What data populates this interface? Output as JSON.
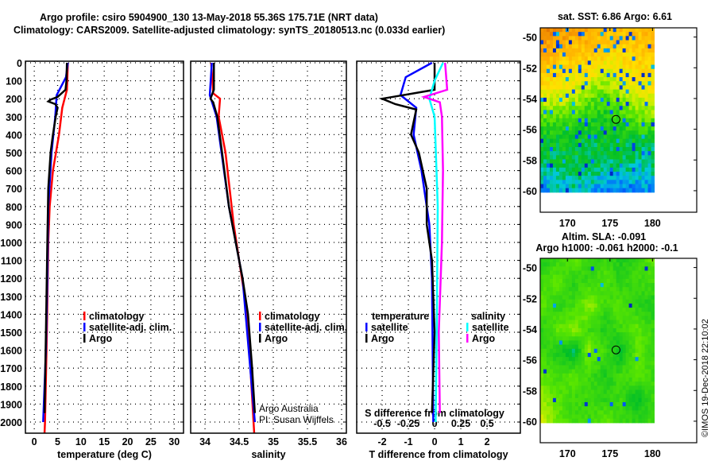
{
  "title_line1": "Argo profile: csiro 5904900_130 13-May-2018 55.36S 175.71E (NRT data)",
  "title_line2": "Climatology: CARS2009. Satellite-adjusted climatology: synTS_20180513.nc (0.033d earlier)",
  "credit": "Argo Australia",
  "pi": "PI: Susan Wijffels",
  "stamp": "©IMOS 19-Dec-2018 22:10:02",
  "colors": {
    "climatology": "#ff0000",
    "satellite": "#0000ff",
    "argo": "#000000",
    "sal_sat": "#00ffff",
    "sal_argo": "#ff00ff"
  },
  "chart_data": [
    {
      "type": "line",
      "id": "temperature",
      "xlabel": "temperature (deg C)",
      "ylabel": "",
      "xlim": [
        -1.9,
        32
      ],
      "ylim": [
        2060,
        0
      ],
      "xticks": [
        "0",
        "5",
        "10",
        "15",
        "20",
        "25",
        "30"
      ],
      "xtick_values": [
        0,
        5,
        10,
        15,
        20,
        25,
        30
      ],
      "yticks": [
        "0",
        "100",
        "200",
        "300",
        "400",
        "500",
        "600",
        "700",
        "800",
        "900",
        "1000",
        "1100",
        "1200",
        "1300",
        "1400",
        "1500",
        "1600",
        "1700",
        "1800",
        "1900",
        "2000"
      ],
      "legend": [
        "climatology",
        "satellite-adj. clim.",
        "Argo"
      ],
      "series": [
        {
          "name": "climatology",
          "color": "#ff0000",
          "depth": [
            0,
            150,
            250,
            400,
            600,
            800,
            1000,
            1500,
            2000,
            2060
          ],
          "values": [
            7.2,
            7.0,
            6.0,
            5.3,
            4.0,
            3.3,
            3.0,
            2.7,
            2.3,
            2.2
          ]
        },
        {
          "name": "satellite-adj. clim.",
          "color": "#0000ff",
          "depth": [
            0,
            80,
            180,
            300,
            500,
            800,
            1200,
            1600,
            2000
          ],
          "values": [
            7.2,
            6.8,
            4.8,
            4.5,
            3.7,
            3.0,
            2.8,
            2.5,
            1.9
          ]
        },
        {
          "name": "Argo",
          "color": "#000000",
          "depth": [
            0,
            100,
            150,
            190,
            205,
            215,
            230,
            250,
            300,
            400,
            500,
            700,
            1000,
            1500,
            1950
          ],
          "values": [
            7.0,
            6.9,
            6.7,
            5.0,
            3.5,
            3.0,
            4.5,
            5.0,
            4.6,
            4.0,
            3.5,
            3.0,
            2.8,
            2.5,
            2.2
          ]
        }
      ]
    },
    {
      "type": "line",
      "id": "salinity",
      "xlabel": "salinity",
      "xlim": [
        33.79,
        36.07
      ],
      "ylim": [
        2060,
        0
      ],
      "xticks": [
        "34",
        "34.5",
        "35",
        "35.5",
        "36"
      ],
      "xtick_values": [
        34,
        34.5,
        35,
        35.5,
        36
      ],
      "legend": [
        "climatology",
        "satellite-adj. clim.",
        "Argo"
      ],
      "series": [
        {
          "name": "climatology",
          "color": "#ff0000",
          "depth": [
            0,
            170,
            200,
            300,
            500,
            900,
            1100,
            1400,
            2060
          ],
          "values": [
            34.09,
            34.12,
            34.22,
            34.2,
            34.3,
            34.42,
            34.5,
            34.62,
            34.72
          ]
        },
        {
          "name": "satellite-adj. clim.",
          "color": "#0000ff",
          "depth": [
            0,
            180,
            300,
            800,
            1200,
            2000
          ],
          "values": [
            34.1,
            34.07,
            34.17,
            34.35,
            34.55,
            34.73
          ]
        },
        {
          "name": "Argo",
          "color": "#000000",
          "depth": [
            0,
            150,
            200,
            220,
            300,
            500,
            800,
            1000,
            1200,
            1400,
            1700,
            1950
          ],
          "values": [
            34.13,
            34.13,
            34.08,
            34.12,
            34.18,
            34.25,
            34.35,
            34.45,
            34.55,
            34.63,
            34.69,
            34.73
          ]
        }
      ]
    },
    {
      "type": "line",
      "id": "difference",
      "xlabel": "T difference from climatology",
      "x2label": "S difference from climatology",
      "xlim": [
        -2.97,
        3.27
      ],
      "ylim": [
        2060,
        0
      ],
      "xticks": [
        "-2",
        "-1",
        "0",
        "1",
        "2"
      ],
      "xtick_values": [
        -2,
        -1,
        0,
        1,
        2
      ],
      "x2ticks": [
        "-0.5",
        "-0.25",
        "0",
        "0.25",
        "0.5"
      ],
      "x2tick_values": [
        -0.5,
        -0.25,
        0,
        0.25,
        0.5
      ],
      "legend_t": {
        "title": "temperature",
        "items": [
          "satellite",
          "Argo"
        ]
      },
      "legend_s": {
        "title": "salinity",
        "items": [
          "satellite",
          "Argo"
        ]
      },
      "series": [
        {
          "name": "T satellite",
          "axis": "T",
          "color": "#0000ff",
          "depth": [
            0,
            80,
            180,
            250,
            400,
            600,
            900,
            1200,
            2000
          ],
          "values": [
            -0.1,
            -1.1,
            -1.3,
            -0.7,
            -0.8,
            -0.5,
            -0.2,
            -0.1,
            -0.05
          ]
        },
        {
          "name": "T Argo",
          "axis": "T",
          "color": "#000000",
          "depth": [
            0,
            150,
            180,
            200,
            230,
            260,
            400,
            500,
            700,
            900,
            1100,
            1500,
            1950
          ],
          "values": [
            0,
            0,
            -1.2,
            -2.0,
            -1.5,
            -0.7,
            -0.9,
            -0.6,
            -0.3,
            -0.3,
            -0.1,
            0,
            -0.1
          ]
        },
        {
          "name": "S satellite",
          "axis": "S",
          "color": "#00ffff",
          "depth": [
            0,
            100,
            200,
            300,
            800,
            1500,
            2000
          ],
          "values": [
            0.08,
            0.0,
            -0.05,
            0.0,
            0.03,
            0.02,
            0.01
          ]
        },
        {
          "name": "S Argo",
          "axis": "S",
          "color": "#ff00ff",
          "depth": [
            0,
            150,
            190,
            220,
            300,
            600,
            1000,
            1500,
            1950
          ],
          "values": [
            0.1,
            0.12,
            -0.1,
            0.05,
            0.07,
            0.08,
            0.07,
            0.04,
            0.05
          ]
        }
      ]
    },
    {
      "type": "heatmap",
      "id": "sst-map",
      "title": "sat. SST: 6.86 Argo: 6.61",
      "xticks": [
        "170",
        "175",
        "180"
      ],
      "xtick_values": [
        170,
        175,
        180
      ],
      "yticks": [
        "-50",
        "-52",
        "-54",
        "-56",
        "-58",
        "-60"
      ],
      "ytick_values": [
        -50,
        -52,
        -54,
        -56,
        -58,
        -60
      ],
      "xlim": [
        166.8,
        185.2
      ],
      "ylim": [
        -61.4,
        -49.4
      ],
      "data_lon": [
        166.8,
        180.2
      ],
      "data_lat": [
        -60.1,
        -49.4
      ],
      "rows_north_to_south": [
        [
          0.95,
          0.9,
          0.85,
          0.85,
          0.8,
          0.8,
          0.8,
          0.8
        ],
        [
          0.85,
          0.8,
          0.78,
          0.78,
          0.75,
          0.72,
          0.75,
          0.78
        ],
        [
          0.75,
          0.72,
          0.7,
          0.68,
          0.62,
          0.65,
          0.7,
          0.72
        ],
        [
          0.65,
          0.62,
          0.6,
          0.5,
          0.45,
          0.55,
          0.6,
          0.62
        ],
        [
          0.45,
          0.45,
          0.42,
          0.4,
          0.38,
          0.42,
          0.48,
          0.5
        ],
        [
          0.35,
          0.35,
          0.38,
          0.33,
          0.35,
          0.35,
          0.33,
          0.33
        ],
        [
          0.3,
          0.33,
          0.32,
          0.33,
          0.32,
          0.3,
          0.3,
          0.3
        ],
        [
          0.2,
          0.25,
          0.28,
          0.25,
          0.15,
          0.15,
          0.18,
          0.2
        ]
      ],
      "marker": {
        "lon": 175.71,
        "lat": -55.36
      }
    },
    {
      "type": "heatmap",
      "id": "sla-map",
      "title": "Altim. SLA: -0.091",
      "subtitle": "Argo h1000: -0.061 h2000: -0.1",
      "xticks": [
        "170",
        "175",
        "180"
      ],
      "xtick_values": [
        170,
        175,
        180
      ],
      "yticks": [
        "-50",
        "-52",
        "-54",
        "-56",
        "-58",
        "-60"
      ],
      "ytick_values": [
        -50,
        -52,
        -54,
        -56,
        -58,
        -60
      ],
      "xlim": [
        166.8,
        185.2
      ],
      "ylim": [
        -61.4,
        -49.4
      ],
      "data_lon": [
        166.8,
        180.2
      ],
      "data_lat": [
        -60.1,
        -49.4
      ],
      "rows_north_to_south": [
        [
          0.4,
          0.45,
          0.5,
          0.42,
          0.45,
          0.4,
          0.45,
          0.5
        ],
        [
          0.45,
          0.5,
          0.42,
          0.45,
          0.48,
          0.42,
          0.45,
          0.45
        ],
        [
          0.5,
          0.42,
          0.45,
          0.55,
          0.45,
          0.5,
          0.42,
          0.4
        ],
        [
          0.42,
          0.5,
          0.55,
          0.45,
          0.4,
          0.45,
          0.5,
          0.45
        ],
        [
          0.45,
          0.4,
          0.3,
          0.55,
          0.45,
          0.35,
          0.5,
          0.45
        ],
        [
          0.5,
          0.45,
          0.5,
          0.45,
          0.4,
          0.45,
          0.5,
          0.45
        ],
        [
          0.55,
          0.5,
          0.45,
          0.45,
          0.42,
          0.45,
          0.35,
          0.45
        ],
        [
          0.62,
          0.5,
          0.45,
          0.45,
          0.5,
          0.45,
          0.42,
          0.45
        ]
      ],
      "marker": {
        "lon": 175.71,
        "lat": -55.36
      }
    }
  ]
}
